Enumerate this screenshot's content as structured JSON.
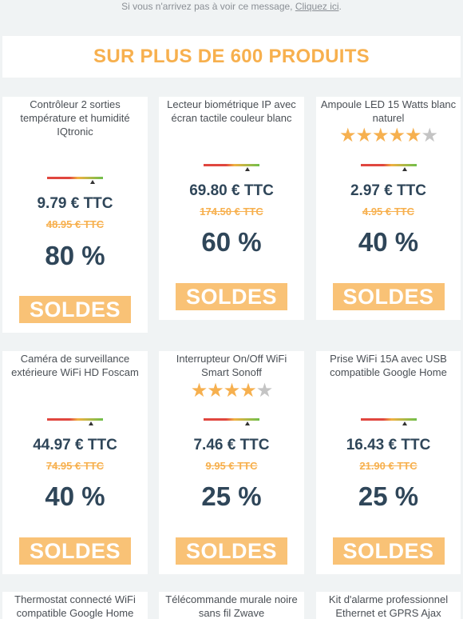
{
  "header": {
    "notice_prefix": "Si vous n'arrivez pas à voir ce message, ",
    "notice_link": "Cliquez ici",
    "notice_suffix": "."
  },
  "banner": {
    "title": "SUR PLUS DE 600 PRODUITS"
  },
  "colors": {
    "accent": "#f7b04e",
    "price": "#2f4659",
    "button": "#f9c276",
    "star_off": "#c4c4c4"
  },
  "products": [
    {
      "name": "Contrôleur 2 sorties température et humidité IQtronic",
      "rating": 0,
      "price": "9.79 € TTC",
      "old_price": "48.95 € TTC",
      "discount": "80 %",
      "button": "SOLDES"
    },
    {
      "name": "Lecteur biométrique IP avec écran tactile couleur blanc",
      "rating": 0,
      "price": "69.80 € TTC",
      "old_price": "174.50 € TTC",
      "discount": "60 %",
      "button": "SOLDES"
    },
    {
      "name": "Ampoule LED 15 Watts blanc naturel",
      "rating": 5,
      "price": "2.97 € TTC",
      "old_price": "4.95 € TTC",
      "discount": "40 %",
      "button": "SOLDES"
    },
    {
      "name": "Caméra de surveillance extérieure WiFi HD Foscam",
      "rating": 0,
      "price": "44.97 € TTC",
      "old_price": "74.95 € TTC",
      "discount": "40 %",
      "button": "SOLDES"
    },
    {
      "name": "Interrupteur On/Off WiFi Smart Sonoff",
      "rating": 4,
      "price": "7.46 € TTC",
      "old_price": "9.95 € TTC",
      "discount": "25 %",
      "button": "SOLDES"
    },
    {
      "name": "Prise WiFi 15A avec USB compatible Google Home",
      "rating": 0,
      "price": "16.43 € TTC",
      "old_price": "21.90 € TTC",
      "discount": "25 %",
      "button": "SOLDES"
    },
    {
      "name": "Thermostat connecté WiFi compatible Google Home",
      "rating": 0
    },
    {
      "name": "Télécommande murale noire sans fil Zwave",
      "rating": 0
    },
    {
      "name": "Kit d'alarme professionnel Ethernet et GPRS Ajax",
      "rating": 0
    }
  ]
}
